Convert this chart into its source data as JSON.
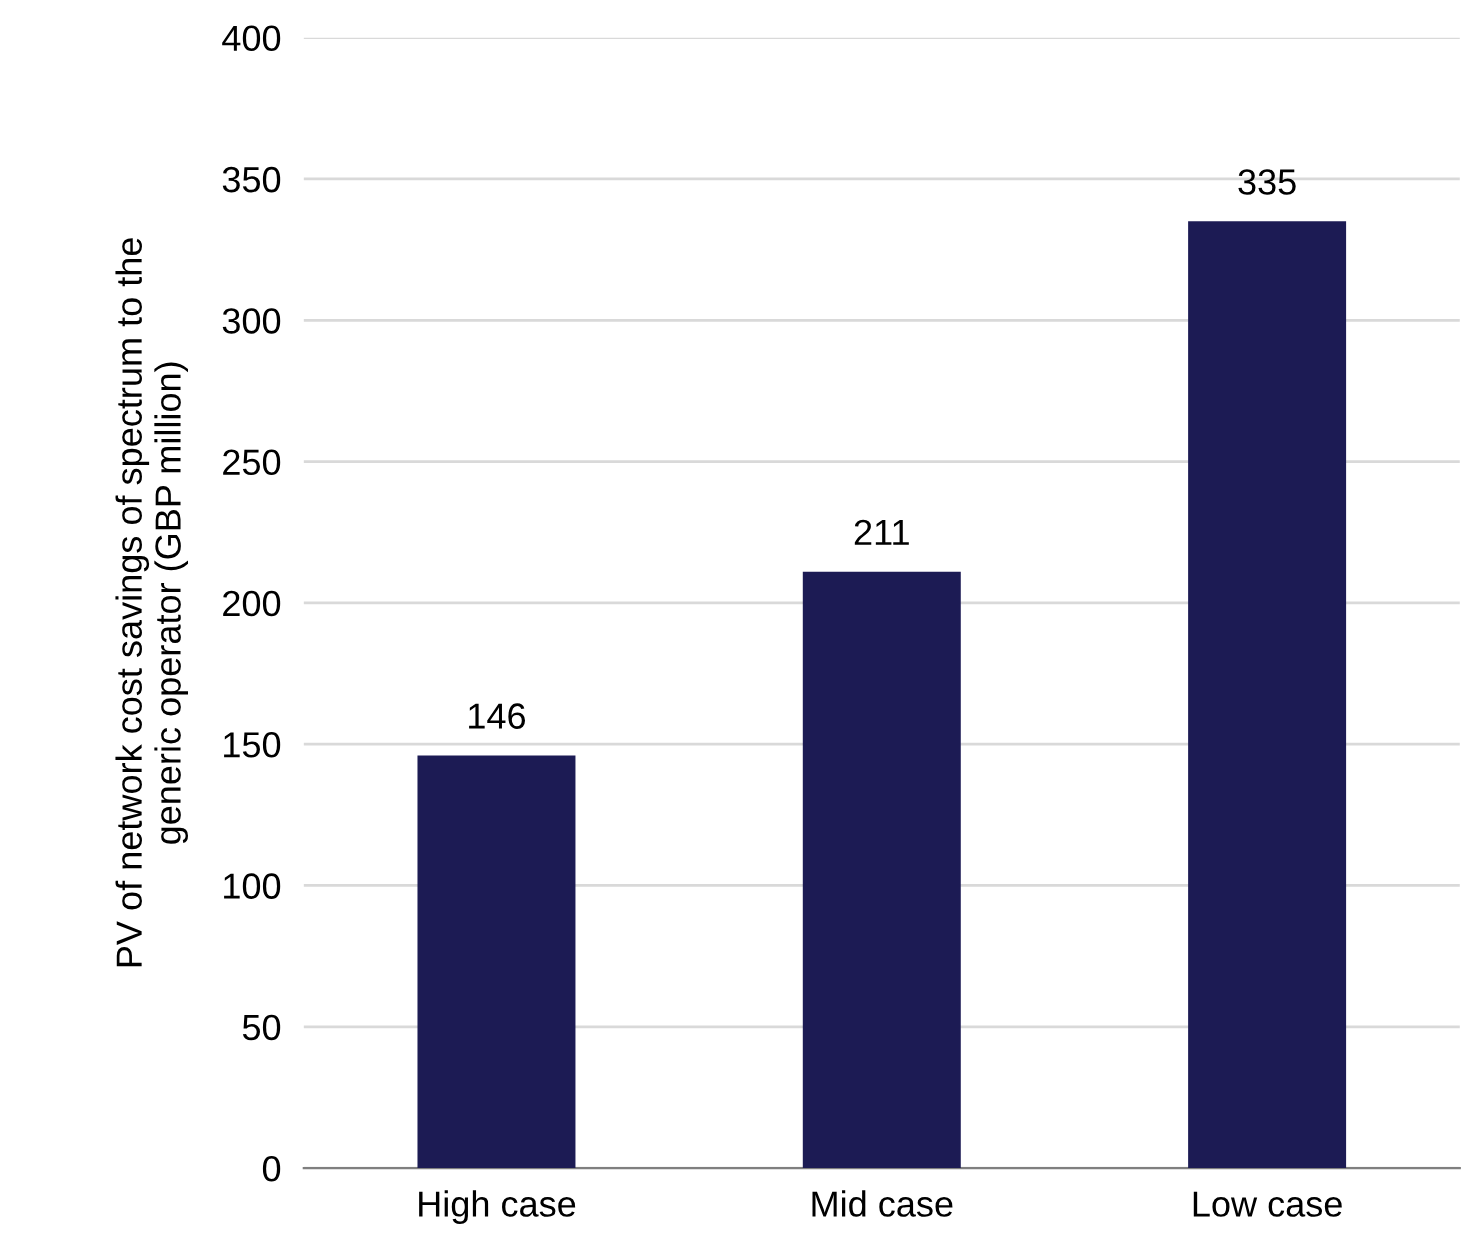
{
  "chart_data": {
    "type": "bar",
    "ylabel": "PV of network cost savings of spectrum to the\ngeneric operator (GBP million)",
    "categories": [
      "High case",
      "Mid case",
      "Low case"
    ],
    "values": [
      146,
      211,
      335
    ],
    "color": "#1c1b54",
    "ylim": [
      0,
      400
    ],
    "yticks": [
      0,
      50,
      100,
      150,
      200,
      250,
      300,
      350,
      400
    ],
    "grid": "y",
    "data_labels": true,
    "legend": false
  }
}
